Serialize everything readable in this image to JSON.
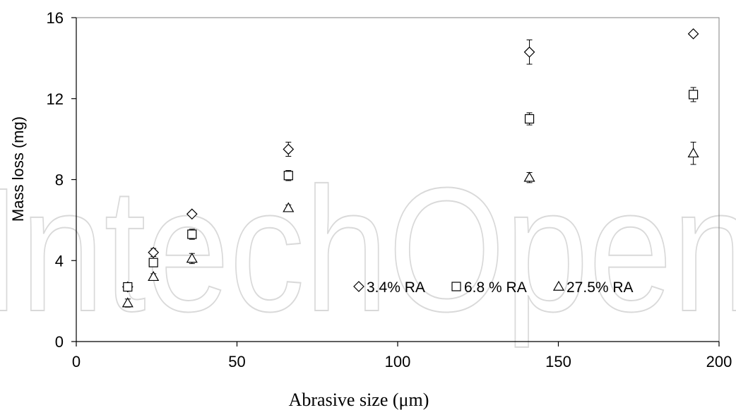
{
  "chart_data": {
    "type": "scatter",
    "xlabel": "Abrasive size (μm)",
    "ylabel": "Mass loss (mg)",
    "xlim": [
      0,
      200
    ],
    "ylim": [
      0,
      16
    ],
    "xticks": [
      0,
      50,
      100,
      150,
      200
    ],
    "yticks": [
      0,
      4,
      8,
      12,
      16
    ],
    "grid": false,
    "legend_position": "lower-right",
    "series": [
      {
        "name": "3.4% RA",
        "marker": "diamond",
        "points": [
          {
            "x": 16,
            "y": 2.7,
            "err": 0.2
          },
          {
            "x": 24,
            "y": 4.4,
            "err": 0.2
          },
          {
            "x": 36,
            "y": 6.3,
            "err": 0.1
          },
          {
            "x": 66,
            "y": 9.5,
            "err": 0.35
          },
          {
            "x": 141,
            "y": 14.3,
            "err": 0.6
          },
          {
            "x": 192,
            "y": 15.2,
            "err": 0.1
          }
        ]
      },
      {
        "name": "6.8 % RA",
        "marker": "square",
        "points": [
          {
            "x": 16,
            "y": 2.7,
            "err": 0.2
          },
          {
            "x": 24,
            "y": 3.9,
            "err": 0.2
          },
          {
            "x": 36,
            "y": 5.3,
            "err": 0.25
          },
          {
            "x": 66,
            "y": 8.2,
            "err": 0.25
          },
          {
            "x": 141,
            "y": 11.0,
            "err": 0.3
          },
          {
            "x": 192,
            "y": 12.2,
            "err": 0.35
          }
        ]
      },
      {
        "name": "27.5% RA",
        "marker": "triangle",
        "points": [
          {
            "x": 16,
            "y": 1.9,
            "err": 0.2
          },
          {
            "x": 24,
            "y": 3.2,
            "err": 0.15
          },
          {
            "x": 36,
            "y": 4.1,
            "err": 0.25
          },
          {
            "x": 66,
            "y": 6.6,
            "err": 0.15
          },
          {
            "x": 141,
            "y": 8.1,
            "err": 0.25
          },
          {
            "x": 192,
            "y": 9.3,
            "err": 0.55
          }
        ]
      }
    ]
  },
  "watermark": {
    "text": "IntechOpen"
  },
  "colors": {
    "marker_fill": "#ffffff",
    "marker_stroke": "#000000",
    "axis": "#000000",
    "frame": "#808080"
  }
}
